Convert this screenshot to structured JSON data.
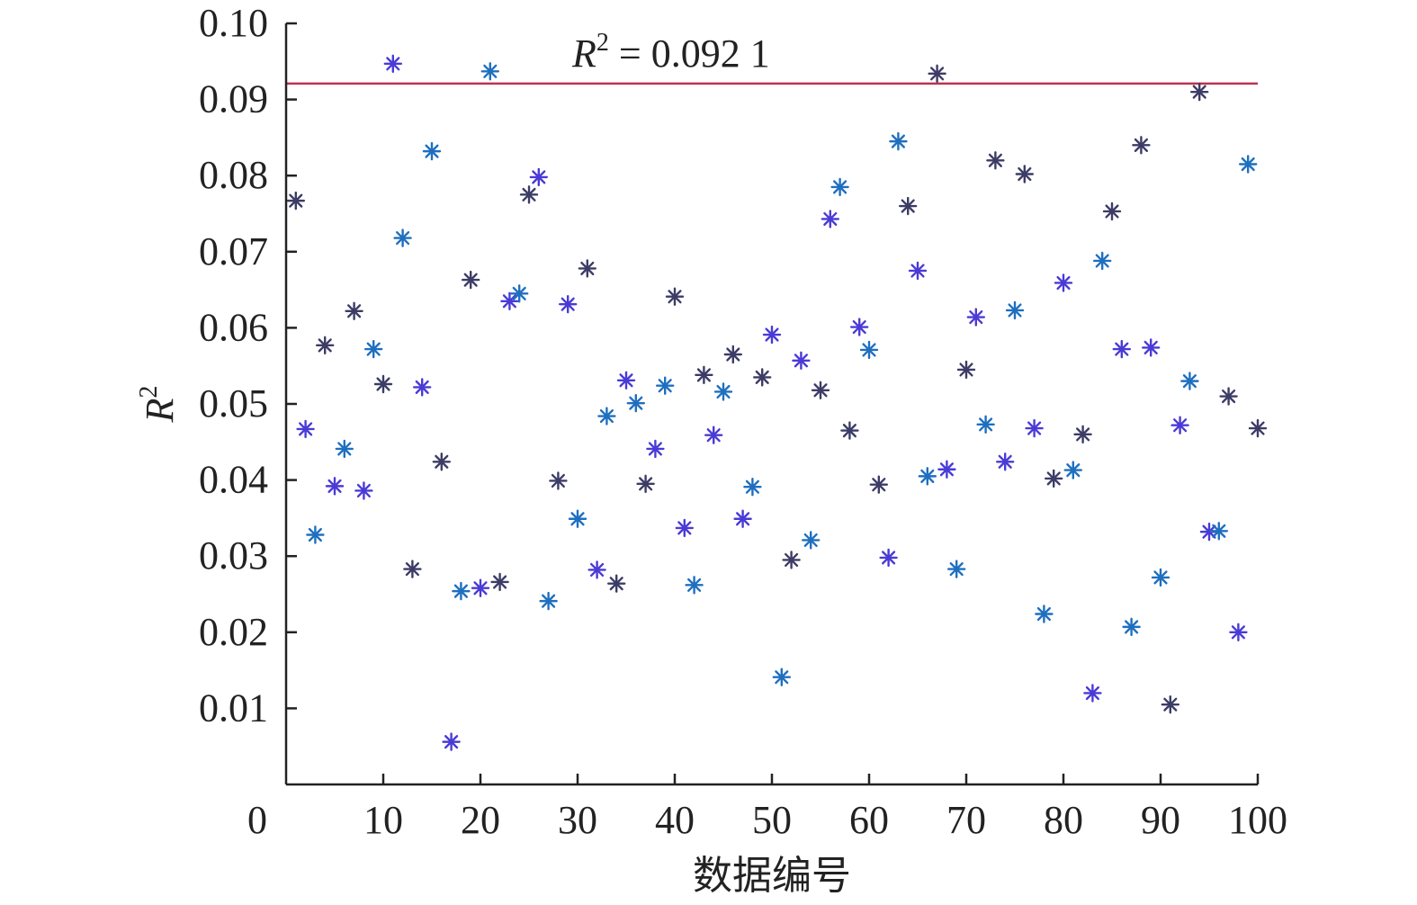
{
  "chart_data": {
    "type": "scatter",
    "title": "",
    "xlabel": "数据编号",
    "ylabel": "R",
    "ylabel_superscript": "2",
    "xlim": [
      0,
      100
    ],
    "ylim": [
      0,
      0.1
    ],
    "x_ticks": [
      0,
      10,
      20,
      30,
      40,
      50,
      60,
      70,
      80,
      90,
      100
    ],
    "x_tick_labels": [
      "0",
      "10",
      "20",
      "30",
      "40",
      "50",
      "60",
      "70",
      "80",
      "90",
      "100"
    ],
    "y_ticks": [
      0.01,
      0.02,
      0.03,
      0.04,
      0.05,
      0.06,
      0.07,
      0.08,
      0.09,
      0.1
    ],
    "y_tick_labels": [
      "0.01",
      "0.02",
      "0.03",
      "0.04",
      "0.05",
      "0.06",
      "0.07",
      "0.08",
      "0.09",
      "0.10"
    ],
    "grid": false,
    "marker": "asterisk",
    "marker_colors": [
      "#3c3c66",
      "#4a3ad6",
      "#1e6fbf"
    ],
    "reference_line": {
      "y": 0.0921,
      "color": "#c0314f",
      "label_prefix": "R",
      "label_superscript": "2",
      "label_value": " = 0.092 1"
    },
    "points": [
      {
        "x": 1,
        "y": 0.0767
      },
      {
        "x": 2,
        "y": 0.0467
      },
      {
        "x": 3,
        "y": 0.0328
      },
      {
        "x": 4,
        "y": 0.0577
      },
      {
        "x": 5,
        "y": 0.0392
      },
      {
        "x": 6,
        "y": 0.0441
      },
      {
        "x": 7,
        "y": 0.0622
      },
      {
        "x": 8,
        "y": 0.0386
      },
      {
        "x": 9,
        "y": 0.0572
      },
      {
        "x": 10,
        "y": 0.0526
      },
      {
        "x": 11,
        "y": 0.0947
      },
      {
        "x": 12,
        "y": 0.0718
      },
      {
        "x": 13,
        "y": 0.0283
      },
      {
        "x": 14,
        "y": 0.0522
      },
      {
        "x": 15,
        "y": 0.0832
      },
      {
        "x": 16,
        "y": 0.0424
      },
      {
        "x": 17,
        "y": 0.0056
      },
      {
        "x": 18,
        "y": 0.0254
      },
      {
        "x": 19,
        "y": 0.0663
      },
      {
        "x": 20,
        "y": 0.0258
      },
      {
        "x": 21,
        "y": 0.0937
      },
      {
        "x": 22,
        "y": 0.0266
      },
      {
        "x": 23,
        "y": 0.0635
      },
      {
        "x": 24,
        "y": 0.0645
      },
      {
        "x": 25,
        "y": 0.0775
      },
      {
        "x": 26,
        "y": 0.0798
      },
      {
        "x": 27,
        "y": 0.0241
      },
      {
        "x": 28,
        "y": 0.0399
      },
      {
        "x": 29,
        "y": 0.0631
      },
      {
        "x": 30,
        "y": 0.0349
      },
      {
        "x": 31,
        "y": 0.0678
      },
      {
        "x": 32,
        "y": 0.0282
      },
      {
        "x": 33,
        "y": 0.0484
      },
      {
        "x": 34,
        "y": 0.0264
      },
      {
        "x": 35,
        "y": 0.0531
      },
      {
        "x": 36,
        "y": 0.0501
      },
      {
        "x": 37,
        "y": 0.0395
      },
      {
        "x": 38,
        "y": 0.0441
      },
      {
        "x": 39,
        "y": 0.0524
      },
      {
        "x": 40,
        "y": 0.0641
      },
      {
        "x": 41,
        "y": 0.0337
      },
      {
        "x": 42,
        "y": 0.0262
      },
      {
        "x": 43,
        "y": 0.0538
      },
      {
        "x": 44,
        "y": 0.0459
      },
      {
        "x": 45,
        "y": 0.0516
      },
      {
        "x": 46,
        "y": 0.0565
      },
      {
        "x": 47,
        "y": 0.0349
      },
      {
        "x": 48,
        "y": 0.0391
      },
      {
        "x": 49,
        "y": 0.0535
      },
      {
        "x": 50,
        "y": 0.0591
      },
      {
        "x": 51,
        "y": 0.0141
      },
      {
        "x": 52,
        "y": 0.0295
      },
      {
        "x": 53,
        "y": 0.0557
      },
      {
        "x": 54,
        "y": 0.0321
      },
      {
        "x": 55,
        "y": 0.0518
      },
      {
        "x": 56,
        "y": 0.0743
      },
      {
        "x": 57,
        "y": 0.0785
      },
      {
        "x": 58,
        "y": 0.0465
      },
      {
        "x": 59,
        "y": 0.0601
      },
      {
        "x": 60,
        "y": 0.0571
      },
      {
        "x": 61,
        "y": 0.0394
      },
      {
        "x": 62,
        "y": 0.0298
      },
      {
        "x": 63,
        "y": 0.0845
      },
      {
        "x": 64,
        "y": 0.076
      },
      {
        "x": 65,
        "y": 0.0675
      },
      {
        "x": 66,
        "y": 0.0405
      },
      {
        "x": 67,
        "y": 0.0934
      },
      {
        "x": 68,
        "y": 0.0414
      },
      {
        "x": 69,
        "y": 0.0283
      },
      {
        "x": 70,
        "y": 0.0545
      },
      {
        "x": 71,
        "y": 0.0614
      },
      {
        "x": 72,
        "y": 0.0473
      },
      {
        "x": 73,
        "y": 0.082
      },
      {
        "x": 74,
        "y": 0.0424
      },
      {
        "x": 75,
        "y": 0.0623
      },
      {
        "x": 76,
        "y": 0.0802
      },
      {
        "x": 77,
        "y": 0.0468
      },
      {
        "x": 78,
        "y": 0.0224
      },
      {
        "x": 79,
        "y": 0.0402
      },
      {
        "x": 80,
        "y": 0.0659
      },
      {
        "x": 81,
        "y": 0.0413
      },
      {
        "x": 82,
        "y": 0.046
      },
      {
        "x": 83,
        "y": 0.012
      },
      {
        "x": 84,
        "y": 0.0688
      },
      {
        "x": 85,
        "y": 0.0753
      },
      {
        "x": 86,
        "y": 0.0572
      },
      {
        "x": 87,
        "y": 0.0207
      },
      {
        "x": 88,
        "y": 0.084
      },
      {
        "x": 89,
        "y": 0.0574
      },
      {
        "x": 90,
        "y": 0.0272
      },
      {
        "x": 91,
        "y": 0.0105
      },
      {
        "x": 92,
        "y": 0.0472
      },
      {
        "x": 93,
        "y": 0.053
      },
      {
        "x": 94,
        "y": 0.091
      },
      {
        "x": 95,
        "y": 0.0332
      },
      {
        "x": 96,
        "y": 0.0333
      },
      {
        "x": 97,
        "y": 0.051
      },
      {
        "x": 98,
        "y": 0.02
      },
      {
        "x": 99,
        "y": 0.0815
      },
      {
        "x": 100,
        "y": 0.0468
      }
    ]
  }
}
